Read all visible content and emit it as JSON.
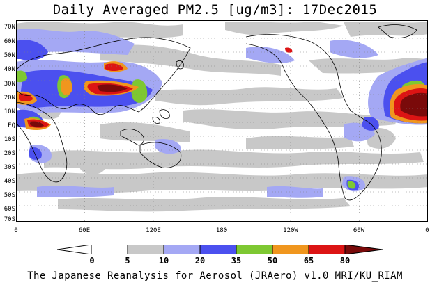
{
  "title": "Daily Averaged PM2.5 [ug/m3]: 17Dec2015",
  "latitude_labels": [
    "70N",
    "60N",
    "50N",
    "40N",
    "30N",
    "20N",
    "10N",
    "EQ",
    "10S",
    "20S",
    "30S",
    "40S",
    "50S",
    "60S",
    "70S"
  ],
  "longitude_labels": [
    "0",
    "60E",
    "120E",
    "180",
    "120W",
    "60W",
    "0"
  ],
  "colorbar": {
    "ticks": [
      "0",
      "5",
      "10",
      "20",
      "35",
      "50",
      "65",
      "80"
    ],
    "colors": [
      "#ffffff",
      "#c8c8c8",
      "#a4a8f4",
      "#4b50ef",
      "#7ec832",
      "#f0961e",
      "#dc1414",
      "#7a0a0a"
    ]
  },
  "credit": "The Japanese Reanalysis for Aerosol (JRAero) v1.0 MRI/KU_RIAM"
}
